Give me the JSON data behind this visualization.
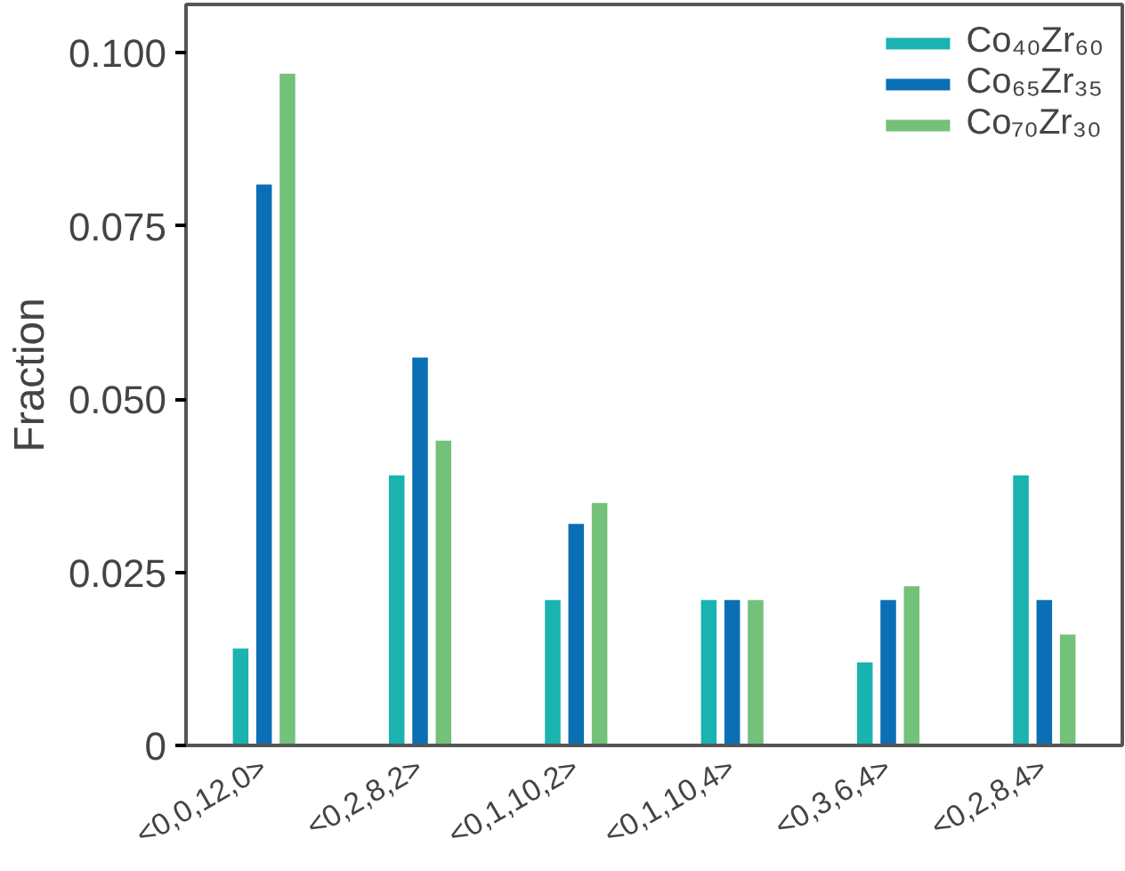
{
  "chart_data": {
    "type": "bar",
    "ylabel": "Fraction",
    "categories": [
      "<0,0,12,0>",
      "<0,2,8,2>",
      "<0,1,10,2>",
      "<0,1,10,4>",
      "<0,3,6,4>",
      "<0,2,8,4>"
    ],
    "series": [
      {
        "name": "Co₄₀Zr₆₀",
        "color": "#1ab3b0",
        "values": [
          0.014,
          0.039,
          0.021,
          0.021,
          0.012,
          0.039
        ]
      },
      {
        "name": "Co₆₅Zr₃₅",
        "color": "#0a6fb5",
        "values": [
          0.081,
          0.056,
          0.032,
          0.021,
          0.021,
          0.021
        ]
      },
      {
        "name": "Co₇₀Zr₃₀",
        "color": "#74c17a",
        "values": [
          0.097,
          0.044,
          0.035,
          0.021,
          0.023,
          0.016
        ]
      }
    ],
    "ylim": [
      0,
      0.107
    ],
    "yticks": [
      {
        "value": 0,
        "label": "0"
      },
      {
        "value": 0.025,
        "label": "0.025"
      },
      {
        "value": 0.05,
        "label": "0.050"
      },
      {
        "value": 0.075,
        "label": "0.075"
      },
      {
        "value": 0.1,
        "label": "0.100"
      }
    ],
    "grid": false,
    "legend": "top right"
  }
}
